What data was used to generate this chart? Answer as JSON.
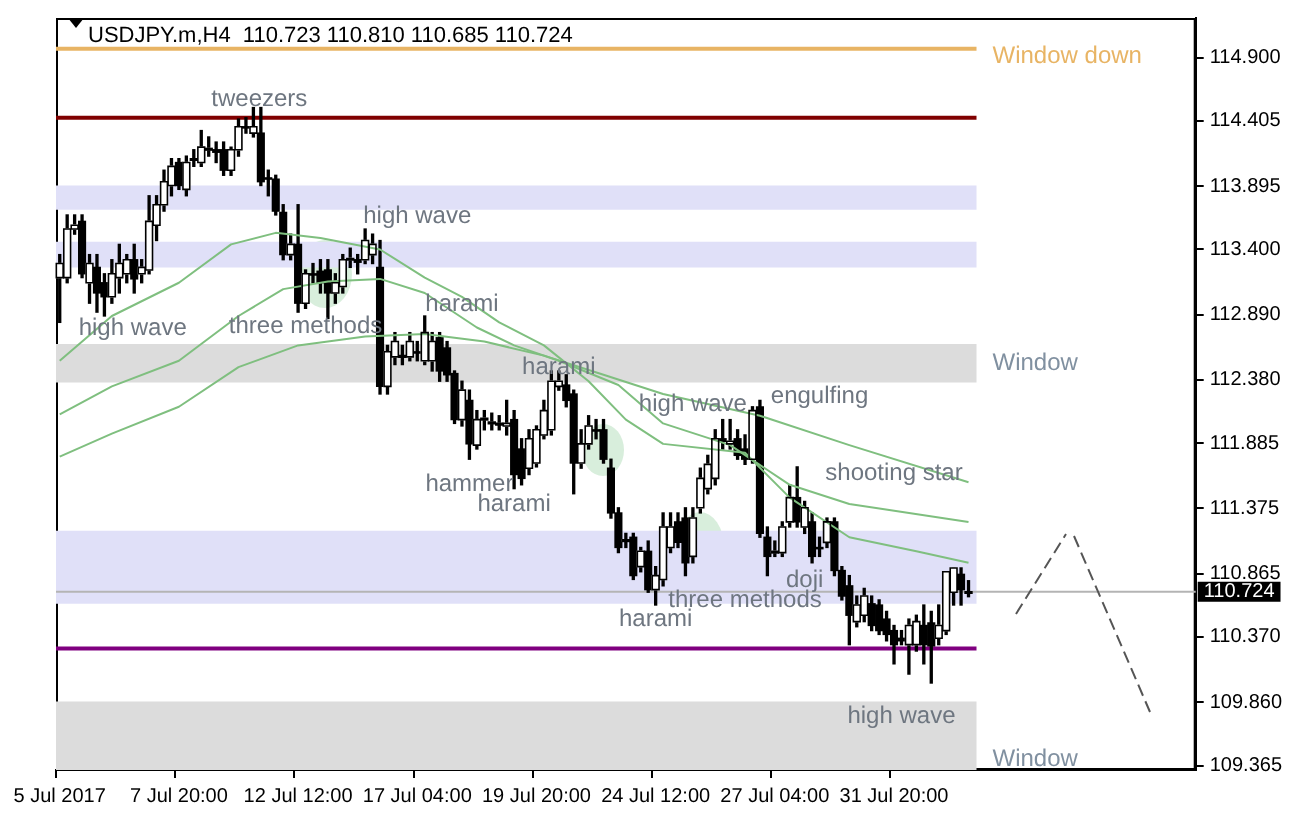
{
  "chart_data": {
    "type": "candlestick",
    "title": "USDJPY.m,H4  110.723 110.810 110.685 110.724",
    "color": "#000000",
    "categories": [
      "5 Jul 2017",
      null,
      null,
      null,
      null,
      null,
      null,
      null,
      null,
      null,
      null,
      null,
      null,
      null,
      null,
      null,
      "7 Jul 20:00",
      null,
      null,
      null,
      null,
      null,
      null,
      null,
      null,
      null,
      null,
      null,
      null,
      null,
      null,
      null,
      "12 Jul 12:00",
      null,
      null,
      null,
      null,
      null,
      null,
      null,
      null,
      null,
      null,
      null,
      null,
      null,
      null,
      null,
      "17 Jul 04:00",
      null,
      null,
      null,
      null,
      null,
      null,
      null,
      null,
      null,
      null,
      null,
      null,
      null,
      null,
      null,
      "19 Jul 20:00",
      null,
      null,
      null,
      null,
      null,
      null,
      null,
      null,
      null,
      null,
      null,
      null,
      null,
      null,
      null,
      "24 Jul 12:00",
      null,
      null,
      null,
      null,
      null,
      null,
      null,
      null,
      null,
      null,
      null,
      null,
      null,
      null,
      null,
      "27 Jul 04:00",
      null,
      null,
      null,
      null,
      null,
      null,
      null,
      null,
      null,
      null,
      null,
      null,
      null,
      null,
      null,
      "31 Jul 20:00",
      null,
      null,
      null,
      null,
      null,
      null,
      null,
      null,
      null,
      null,
      null,
      null,
      null,
      null,
      null,
      null,
      null,
      null,
      null,
      null,
      null,
      null,
      null,
      null,
      null,
      null,
      null,
      null,
      null,
      null,
      null,
      null,
      null,
      null,
      null,
      null,
      null,
      null,
      null,
      null
    ],
    "ohlc": [
      [
        113.18,
        113.36,
        112.83,
        113.29
      ],
      [
        113.18,
        113.67,
        113.14,
        113.56
      ],
      [
        113.56,
        113.67,
        113.52,
        113.59
      ],
      [
        113.62,
        113.67,
        113.18,
        113.21
      ],
      [
        113.14,
        113.36,
        112.98,
        113.29
      ],
      [
        113.26,
        113.36,
        112.91,
        113.06
      ],
      [
        113.14,
        113.21,
        112.88,
        113.03
      ],
      [
        113.03,
        113.32,
        112.98,
        113.21
      ],
      [
        113.18,
        113.44,
        113.06,
        113.29
      ],
      [
        113.21,
        113.36,
        113.14,
        113.32
      ],
      [
        113.32,
        113.44,
        113.06,
        113.17
      ],
      [
        113.21,
        113.32,
        113.14,
        113.26
      ],
      [
        113.24,
        113.82,
        113.21,
        113.62
      ],
      [
        113.59,
        113.82,
        113.47,
        113.75
      ],
      [
        113.75,
        114.02,
        113.7,
        113.93
      ],
      [
        113.9,
        114.11,
        113.82,
        114.05
      ],
      [
        114.08,
        114.11,
        113.87,
        113.9
      ],
      [
        113.87,
        114.13,
        113.82,
        114.08
      ],
      [
        114.1,
        114.18,
        114.05,
        114.11
      ],
      [
        114.08,
        114.33,
        114.05,
        114.2
      ],
      [
        114.18,
        114.28,
        114.13,
        114.19
      ],
      [
        114.18,
        114.24,
        114.08,
        114.16
      ],
      [
        114.18,
        114.24,
        113.98,
        114.02
      ],
      [
        114.02,
        114.2,
        113.98,
        114.18
      ],
      [
        114.18,
        114.42,
        114.13,
        114.36
      ],
      [
        114.36,
        114.43,
        114.31,
        114.35
      ],
      [
        114.31,
        114.51,
        114.28,
        114.36
      ],
      [
        114.31,
        114.51,
        113.9,
        113.93
      ],
      [
        113.96,
        114.02,
        113.82,
        113.95
      ],
      [
        113.95,
        113.98,
        113.67,
        113.7
      ],
      [
        113.69,
        113.75,
        113.32,
        113.36
      ],
      [
        113.36,
        113.52,
        113.32,
        113.44
      ],
      [
        113.44,
        113.75,
        112.91,
        112.98
      ],
      [
        112.98,
        113.24,
        112.94,
        113.21
      ],
      [
        113.21,
        113.29,
        113.14,
        113.2
      ],
      [
        113.23,
        113.32,
        113.06,
        113.14
      ],
      [
        113.24,
        113.32,
        112.86,
        113.06
      ],
      [
        113.06,
        113.21,
        112.98,
        113.14
      ],
      [
        113.11,
        113.36,
        113.06,
        113.32
      ],
      [
        113.32,
        113.41,
        113.26,
        113.33
      ],
      [
        113.32,
        113.36,
        113.21,
        113.3
      ],
      [
        113.32,
        113.56,
        113.29,
        113.47
      ],
      [
        113.36,
        113.52,
        113.29,
        113.44
      ],
      [
        113.26,
        113.47,
        112.27,
        112.33
      ],
      [
        112.33,
        112.65,
        112.27,
        112.6
      ],
      [
        112.56,
        112.75,
        112.5,
        112.68
      ],
      [
        112.56,
        112.65,
        112.5,
        112.57
      ],
      [
        112.56,
        112.75,
        112.53,
        112.68
      ],
      [
        112.6,
        112.68,
        112.53,
        112.59
      ],
      [
        112.53,
        112.88,
        112.5,
        112.75
      ],
      [
        112.53,
        112.75,
        112.45,
        112.68
      ],
      [
        112.71,
        112.75,
        112.37,
        112.45
      ],
      [
        112.63,
        112.68,
        112.37,
        112.42
      ],
      [
        112.43,
        112.45,
        112.04,
        112.07
      ],
      [
        112.07,
        112.37,
        112.02,
        112.3
      ],
      [
        112.22,
        112.3,
        111.76,
        111.88
      ],
      [
        111.87,
        112.14,
        111.84,
        112.07
      ],
      [
        112.07,
        112.14,
        111.99,
        112.08
      ],
      [
        112.04,
        112.12,
        111.99,
        112.05
      ],
      [
        112.04,
        112.1,
        111.99,
        112.04
      ],
      [
        112.02,
        112.22,
        111.95,
        112.04
      ],
      [
        112.07,
        112.14,
        111.53,
        111.64
      ],
      [
        111.84,
        111.92,
        111.56,
        111.61
      ],
      [
        111.69,
        111.99,
        111.64,
        111.92
      ],
      [
        111.73,
        112.02,
        111.7,
        111.99
      ],
      [
        111.95,
        112.22,
        111.92,
        112.14
      ],
      [
        111.99,
        112.45,
        111.95,
        112.37
      ],
      [
        112.33,
        112.45,
        112.3,
        112.37
      ],
      [
        112.34,
        112.42,
        112.17,
        112.22
      ],
      [
        112.27,
        112.3,
        111.49,
        111.73
      ],
      [
        111.73,
        111.99,
        111.69,
        111.88
      ],
      [
        111.88,
        112.1,
        111.84,
        112.02
      ],
      [
        111.99,
        112.07,
        111.92,
        111.98
      ],
      [
        111.99,
        112.07,
        111.73,
        111.76
      ],
      [
        111.69,
        111.76,
        111.3,
        111.34
      ],
      [
        111.34,
        111.38,
        111.03,
        111.07
      ],
      [
        111.12,
        111.18,
        111.07,
        111.13
      ],
      [
        111.15,
        111.18,
        110.82,
        110.85
      ],
      [
        110.92,
        111.07,
        110.88,
        111.04
      ],
      [
        111.04,
        111.12,
        110.72,
        110.74
      ],
      [
        110.74,
        110.92,
        110.62,
        110.85
      ],
      [
        110.82,
        111.34,
        110.77,
        111.23
      ],
      [
        111.07,
        111.34,
        111.03,
        111.23
      ],
      [
        111.27,
        111.34,
        111.07,
        111.11
      ],
      [
        111.3,
        111.38,
        110.85,
        110.95
      ],
      [
        111.0,
        111.38,
        110.95,
        111.3
      ],
      [
        111.38,
        111.69,
        111.34,
        111.61
      ],
      [
        111.53,
        111.79,
        111.49,
        111.72
      ],
      [
        111.61,
        111.99,
        111.56,
        111.92
      ],
      [
        111.92,
        112.07,
        111.84,
        111.9
      ],
      [
        111.88,
        112.07,
        111.84,
        111.9
      ],
      [
        111.92,
        111.99,
        111.76,
        111.79
      ],
      [
        111.84,
        111.95,
        111.72,
        111.76
      ],
      [
        111.76,
        112.17,
        111.73,
        112.14
      ],
      [
        112.17,
        112.22,
        111.15,
        111.18
      ],
      [
        111.15,
        111.23,
        110.85,
        111.0
      ],
      [
        111.03,
        111.12,
        111.0,
        111.04
      ],
      [
        111.03,
        111.27,
        111.0,
        111.23
      ],
      [
        111.27,
        111.56,
        111.23,
        111.46
      ],
      [
        111.46,
        111.7,
        111.23,
        111.27
      ],
      [
        111.23,
        111.43,
        111.18,
        111.38
      ],
      [
        111.27,
        111.34,
        110.95,
        111.0
      ],
      [
        111.07,
        111.15,
        111.0,
        111.06
      ],
      [
        111.11,
        111.3,
        111.07,
        111.27
      ],
      [
        111.27,
        111.3,
        110.85,
        110.89
      ],
      [
        110.89,
        110.92,
        110.66,
        110.69
      ],
      [
        110.77,
        110.85,
        110.31,
        110.54
      ],
      [
        110.49,
        110.69,
        110.45,
        110.62
      ],
      [
        110.54,
        110.75,
        110.49,
        110.69
      ],
      [
        110.63,
        110.69,
        110.42,
        110.46
      ],
      [
        110.62,
        110.66,
        110.39,
        110.42
      ],
      [
        110.51,
        110.57,
        110.34,
        110.39
      ],
      [
        110.42,
        110.46,
        110.16,
        110.31
      ],
      [
        110.36,
        110.42,
        110.31,
        110.34
      ],
      [
        110.31,
        110.51,
        110.08,
        110.46
      ],
      [
        110.31,
        110.54,
        110.26,
        110.49
      ],
      [
        110.46,
        110.62,
        110.16,
        110.31
      ],
      [
        110.48,
        110.57,
        110.01,
        110.3
      ],
      [
        110.36,
        110.62,
        110.31,
        110.46
      ],
      [
        110.42,
        110.88,
        110.39,
        110.88
      ],
      [
        110.72,
        110.91,
        110.62,
        110.91
      ],
      [
        110.86,
        110.91,
        110.62,
        110.74
      ],
      [
        110.723,
        110.81,
        110.685,
        110.724
      ],
      null,
      null,
      null,
      null,
      null,
      null,
      null,
      null,
      null,
      null,
      null,
      null,
      null,
      null,
      null,
      null,
      null,
      null,
      null,
      null,
      null,
      null,
      null,
      null,
      null,
      null,
      null,
      null,
      null,
      null
    ],
    "series": [
      {
        "type": "line",
        "color": "#7fbf7f",
        "values": [
          112.53,
          null,
          null,
          null,
          null,
          null,
          null,
          112.88,
          null,
          null,
          null,
          null,
          null,
          null,
          null,
          null,
          113.14,
          null,
          null,
          null,
          null,
          null,
          null,
          113.44,
          null,
          null,
          null,
          null,
          null,
          113.53,
          null,
          null,
          null,
          null,
          null,
          113.49,
          null,
          null,
          null,
          null,
          null,
          null,
          null,
          113.4,
          null,
          null,
          null,
          null,
          null,
          113.18,
          null,
          null,
          null,
          null,
          113.03,
          null,
          null,
          null,
          null,
          112.83,
          null,
          null,
          null,
          null,
          null,
          112.65,
          null,
          null,
          null,
          null,
          null,
          112.37,
          null,
          null,
          null,
          null,
          112.07,
          null,
          null,
          null,
          null,
          111.88,
          null,
          null,
          null,
          null,
          null,
          null,
          null,
          null,
          null,
          null,
          111.81,
          null,
          null,
          null,
          null,
          null,
          111.46,
          null,
          null,
          null,
          null,
          null,
          null,
          null,
          111.15,
          null,
          null,
          null,
          null,
          null,
          null,
          null,
          null,
          111.04,
          null,
          null,
          null,
          null,
          null,
          null,
          110.95,
          null,
          null,
          null,
          null,
          null,
          null,
          null,
          null,
          null,
          null,
          null,
          null,
          null,
          null,
          null,
          null,
          null,
          null,
          null,
          null,
          null,
          null,
          null,
          null,
          null,
          null,
          null,
          null,
          null,
          null
        ]
      },
      {
        "type": "line",
        "color": "#7fbf7f",
        "values": [
          112.11,
          null,
          null,
          null,
          null,
          null,
          null,
          112.33,
          null,
          null,
          null,
          null,
          null,
          null,
          null,
          null,
          112.53,
          null,
          null,
          null,
          null,
          null,
          null,
          null,
          112.88,
          null,
          null,
          null,
          null,
          null,
          113.09,
          null,
          null,
          null,
          null,
          null,
          113.15,
          null,
          null,
          null,
          null,
          null,
          null,
          113.17,
          null,
          null,
          null,
          null,
          null,
          113.06,
          null,
          null,
          null,
          null,
          null,
          null,
          112.79,
          null,
          null,
          null,
          null,
          112.65,
          null,
          null,
          null,
          null,
          null,
          112.53,
          null,
          null,
          null,
          null,
          null,
          null,
          null,
          112.34,
          null,
          null,
          null,
          null,
          null,
          112.04,
          null,
          null,
          null,
          null,
          null,
          null,
          null,
          null,
          111.87,
          null,
          null,
          null,
          null,
          null,
          null,
          null,
          111.56,
          null,
          null,
          null,
          null,
          null,
          null,
          null,
          111.41,
          null,
          null,
          null,
          null,
          null,
          null,
          null,
          null,
          null,
          null,
          null,
          null,
          null,
          null,
          null,
          111.27,
          null,
          null,
          null,
          null,
          null,
          null,
          null,
          null,
          null,
          null,
          null,
          null,
          null,
          null,
          null,
          null,
          null,
          null,
          null,
          null,
          null,
          null,
          null,
          null,
          null,
          null,
          null,
          null,
          null,
          null
        ]
      },
      {
        "type": "line",
        "color": "#7fbf7f",
        "values": [
          111.78,
          null,
          null,
          null,
          null,
          null,
          null,
          111.96,
          null,
          null,
          null,
          null,
          null,
          null,
          null,
          null,
          112.17,
          null,
          null,
          null,
          null,
          null,
          null,
          null,
          112.48,
          null,
          null,
          null,
          null,
          null,
          null,
          null,
          112.65,
          null,
          null,
          null,
          null,
          null,
          null,
          null,
          null,
          112.72,
          null,
          null,
          null,
          null,
          null,
          null,
          null,
          112.74,
          null,
          null,
          null,
          null,
          null,
          null,
          null,
          112.68,
          null,
          null,
          null,
          null,
          null,
          null,
          null,
          112.57,
          null,
          null,
          null,
          null,
          null,
          null,
          null,
          112.42,
          null,
          null,
          null,
          null,
          null,
          null,
          null,
          112.27,
          null,
          null,
          null,
          null,
          null,
          null,
          null,
          null,
          null,
          null,
          null,
          null,
          112.1,
          null,
          null,
          null,
          null,
          null,
          null,
          null,
          null,
          null,
          null,
          null,
          111.87,
          null,
          null,
          null,
          null,
          null,
          null,
          null,
          null,
          null,
          null,
          null,
          null,
          null,
          null,
          null,
          111.58,
          null,
          null,
          null,
          null,
          null,
          null,
          null,
          null,
          null,
          null,
          null,
          null,
          null,
          null,
          null,
          null,
          null,
          null,
          null,
          null,
          null,
          null,
          null,
          null,
          null,
          null,
          null,
          null,
          null,
          null
        ]
      }
    ],
    "ylim": [
      109.33,
      115.21
    ],
    "yticks": [
      {
        "value": 114.9,
        "label": "114.900"
      },
      114.405,
      113.895,
      {
        "value": 113.4,
        "label": "113.400"
      },
      {
        "value": 112.89,
        "label": "112.890"
      },
      {
        "value": 112.38,
        "label": "112.380"
      },
      111.885,
      111.375,
      110.865,
      {
        "value": 110.37,
        "label": "110.370"
      },
      {
        "value": 109.86,
        "label": "109.860"
      },
      109.365
    ],
    "bands": [
      {
        "axis": "y",
        "from": 113.71,
        "to": 113.9,
        "color": "#e0e0f8"
      },
      {
        "axis": "y",
        "from": 113.26,
        "to": 113.46,
        "color": "#e0e0f8"
      },
      {
        "axis": "y",
        "from": 112.36,
        "to": 112.66,
        "color": "#dcdcdc",
        "label": "Window"
      },
      {
        "axis": "y",
        "from": 110.63,
        "to": 111.2,
        "color": "#e0e0f8"
      },
      {
        "axis": "y",
        "from": 109.33,
        "to": 109.865,
        "color": "#dcdcdc",
        "label": "Window"
      }
    ],
    "ref_lines": [
      {
        "axis": "y",
        "value": 114.97,
        "label": "Window down",
        "color": "#e8b464"
      },
      {
        "axis": "y",
        "value": 114.43,
        "color": "#800000"
      },
      {
        "axis": "y",
        "value": 110.28,
        "color": "#800080"
      },
      {
        "axis": "y",
        "value": 110.724,
        "label": "110.724",
        "color": "#b4b4b4"
      }
    ],
    "annotations": [
      "tweezers",
      "high wave",
      "high wave",
      "three methods",
      "harami",
      "harami",
      "high wave",
      "engulfing",
      "shooting star",
      "hammer",
      "harami",
      "doji",
      "three methods",
      "harami",
      "high wave"
    ],
    "colors": [
      "#ffffff",
      "#ffffff",
      "#ffffff",
      "#000000",
      "#ffffff",
      "#000000",
      "#000000",
      "#ffffff",
      "#ffffff",
      "#ffffff",
      "#000000",
      "#ffffff",
      "#ffffff",
      "#ffffff",
      "#ffffff",
      "#ffffff",
      "#000000",
      "#ffffff",
      "#ffffff",
      "#ffffff",
      "#ffffff",
      "#000000",
      "#000000",
      "#ffffff",
      "#ffffff",
      "#000000",
      "#ffffff",
      "#000000",
      "#000000",
      "#000000",
      "#000000",
      "#ffffff",
      "#000000",
      "#ffffff",
      "#000000",
      "#000000",
      "#000000",
      "#ffffff",
      "#ffffff",
      "#ffffff",
      "#000000",
      "#ffffff",
      "#ffffff",
      "#000000",
      "#ffffff",
      "#ffffff",
      "#ffffff",
      "#ffffff",
      "#000000",
      "#ffffff",
      "#ffffff",
      "#000000",
      "#000000",
      "#000000",
      "#ffffff",
      "#000000",
      "#ffffff",
      "#ffffff",
      "#ffffff",
      "#ffffff",
      "#ffffff",
      "#000000",
      "#000000",
      "#ffffff",
      "#ffffff",
      "#ffffff",
      "#ffffff",
      "#ffffff",
      "#000000",
      "#000000",
      "#ffffff",
      "#ffffff",
      "#000000",
      "#000000",
      "#000000",
      "#000000",
      "#ffffff",
      "#000000",
      "#ffffff",
      "#000000",
      "#ffffff",
      "#ffffff",
      "#ffffff",
      "#000000",
      "#000000",
      "#ffffff",
      "#ffffff",
      "#ffffff",
      "#ffffff",
      "#000000",
      "#ffffff",
      "#000000",
      "#000000",
      "#ffffff",
      "#000000",
      "#000000",
      "#ffffff",
      "#ffffff",
      "#ffffff",
      "#000000",
      "#ffffff",
      "#000000",
      "#000000",
      "#ffffff",
      "#000000",
      "#000000",
      "#000000",
      "#ffffff",
      "#ffffff",
      "#000000",
      "#000000",
      "#000000",
      "#000000",
      "#000000",
      "#ffffff",
      "#ffffff",
      "#000000",
      "#000000",
      "#ffffff",
      "#ffffff",
      "#ffffff",
      "#000000",
      "#ffffff",
      null,
      null,
      null,
      null,
      null,
      null,
      null,
      null,
      null,
      null,
      null,
      null,
      null,
      null,
      null,
      null,
      null,
      null,
      null,
      null,
      null,
      null,
      null,
      null,
      null,
      null,
      null,
      null,
      null,
      null
    ],
    "grid": false,
    "legend": false
  }
}
